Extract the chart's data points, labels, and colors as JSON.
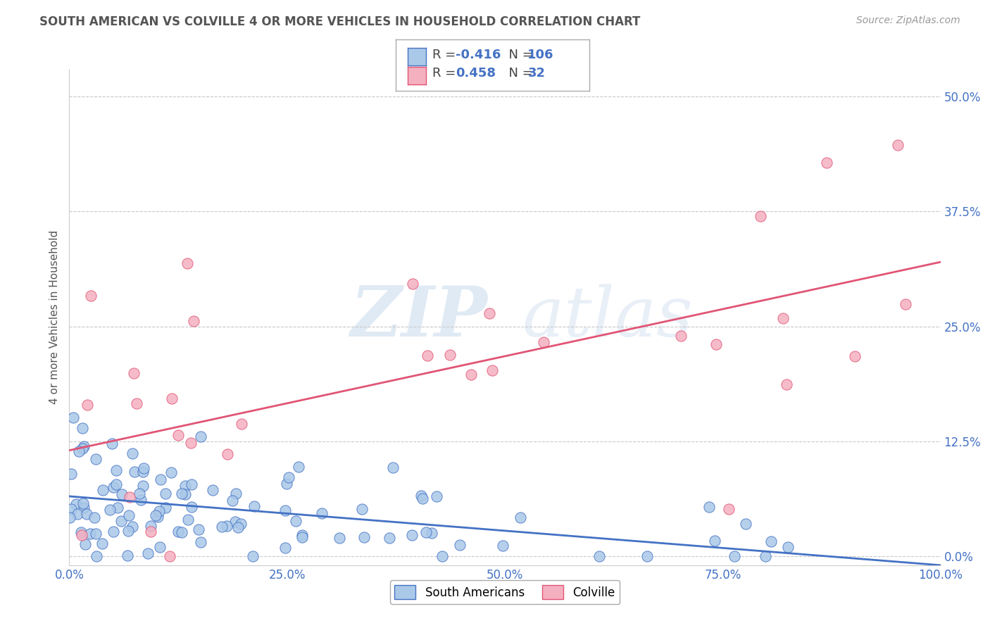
{
  "title": "SOUTH AMERICAN VS COLVILLE 4 OR MORE VEHICLES IN HOUSEHOLD CORRELATION CHART",
  "source": "Source: ZipAtlas.com",
  "ylabel": "4 or more Vehicles in Household",
  "xlim": [
    0,
    1.0
  ],
  "ylim": [
    -0.01,
    0.53
  ],
  "xticks": [
    0.0,
    0.25,
    0.5,
    0.75,
    1.0
  ],
  "xtick_labels": [
    "0.0%",
    "25.0%",
    "50.0%",
    "75.0%",
    "100.0%"
  ],
  "yticks": [
    0.0,
    0.125,
    0.25,
    0.375,
    0.5
  ],
  "ytick_labels": [
    "0.0%",
    "12.5%",
    "25.0%",
    "37.5%",
    "50.0%"
  ],
  "blue_R": -0.416,
  "blue_N": 106,
  "pink_R": 0.458,
  "pink_N": 32,
  "blue_color": "#aac8e8",
  "pink_color": "#f5b0c0",
  "blue_line_color": "#4472c4",
  "pink_line_color": "#e05575",
  "watermark_zip": "ZIP",
  "watermark_atlas": "atlas",
  "background_color": "#ffffff",
  "grid_color": "#c8c8c8",
  "title_color": "#555555",
  "source_color": "#999999",
  "legend_label_blue": "South Americans",
  "legend_label_pink": "Colville",
  "blue_line_start_x": 0.0,
  "blue_line_end_x": 1.0,
  "blue_line_start_y": 0.065,
  "blue_line_end_y": -0.01,
  "pink_line_start_x": 0.0,
  "pink_line_end_x": 1.0,
  "pink_line_start_y": 0.115,
  "pink_line_end_y": 0.32
}
